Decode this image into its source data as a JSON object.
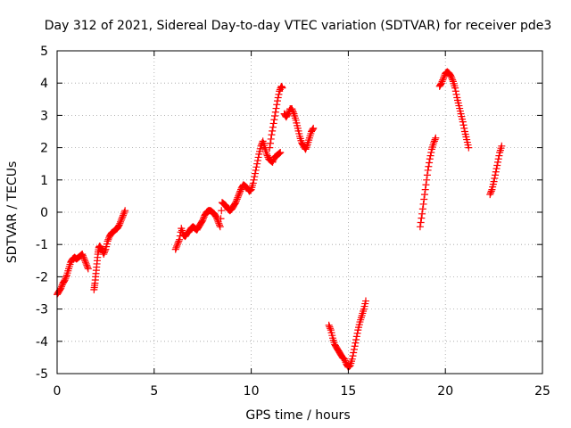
{
  "chart_data": {
    "type": "scatter",
    "title": "Day 312 of 2021, Sidereal Day-to-day VTEC variation (SDTVAR) for receiver pde3",
    "xlabel": "GPS time / hours",
    "ylabel": "SDTVAR / TECUs",
    "xlim": [
      0,
      25
    ],
    "ylim": [
      -5,
      5
    ],
    "xticks": [
      0,
      5,
      10,
      15,
      20,
      25
    ],
    "yticks": [
      -5,
      -4,
      -3,
      -2,
      -1,
      0,
      1,
      2,
      3,
      4,
      5
    ],
    "xtick_labels": [
      "0",
      "5",
      "10",
      "15",
      "20",
      "25"
    ],
    "ytick_labels": [
      "-5",
      "-4",
      "-3",
      "-2",
      "-1",
      "0",
      "1",
      "2",
      "3",
      "4",
      "5"
    ],
    "grid": true,
    "legend": "none",
    "marker": "+",
    "color": "#ff0000",
    "series": [
      {
        "name": "pde3",
        "segments": [
          [
            [
              0.0,
              -2.55
            ],
            [
              0.1,
              -2.45
            ],
            [
              0.2,
              -2.35
            ],
            [
              0.3,
              -2.2
            ],
            [
              0.4,
              -2.1
            ],
            [
              0.5,
              -1.95
            ],
            [
              0.6,
              -1.75
            ],
            [
              0.7,
              -1.55
            ],
            [
              0.8,
              -1.45
            ],
            [
              0.9,
              -1.4
            ],
            [
              1.0,
              -1.45
            ],
            [
              1.1,
              -1.4
            ],
            [
              1.2,
              -1.35
            ],
            [
              1.3,
              -1.3
            ],
            [
              1.4,
              -1.45
            ],
            [
              1.5,
              -1.6
            ],
            [
              1.6,
              -1.75
            ]
          ],
          [
            [
              1.9,
              -2.4
            ],
            [
              1.95,
              -2.2
            ],
            [
              2.0,
              -1.9
            ],
            [
              2.05,
              -1.6
            ],
            [
              2.1,
              -1.3
            ],
            [
              2.15,
              -1.1
            ],
            [
              2.2,
              -1.05
            ],
            [
              2.3,
              -1.15
            ],
            [
              2.4,
              -1.3
            ],
            [
              2.5,
              -1.15
            ],
            [
              2.6,
              -0.9
            ],
            [
              2.7,
              -0.75
            ],
            [
              2.8,
              -0.65
            ],
            [
              2.9,
              -0.6
            ],
            [
              3.0,
              -0.55
            ],
            [
              3.1,
              -0.5
            ],
            [
              3.2,
              -0.4
            ],
            [
              3.3,
              -0.25
            ],
            [
              3.4,
              -0.1
            ],
            [
              3.5,
              0.05
            ]
          ],
          [
            [
              6.1,
              -1.15
            ],
            [
              6.2,
              -1.0
            ],
            [
              6.3,
              -0.85
            ],
            [
              6.4,
              -0.5
            ],
            [
              6.5,
              -0.7
            ],
            [
              6.6,
              -0.75
            ],
            [
              6.7,
              -0.65
            ],
            [
              6.8,
              -0.6
            ],
            [
              6.9,
              -0.5
            ],
            [
              7.0,
              -0.45
            ],
            [
              7.1,
              -0.5
            ],
            [
              7.2,
              -0.55
            ],
            [
              7.3,
              -0.45
            ],
            [
              7.4,
              -0.35
            ],
            [
              7.5,
              -0.25
            ],
            [
              7.6,
              -0.1
            ],
            [
              7.7,
              0.0
            ],
            [
              7.8,
              0.05
            ],
            [
              7.9,
              0.05
            ],
            [
              8.0,
              0.0
            ],
            [
              8.1,
              -0.05
            ],
            [
              8.2,
              -0.15
            ],
            [
              8.3,
              -0.3
            ],
            [
              8.4,
              -0.45
            ],
            [
              8.5,
              0.3
            ],
            [
              8.6,
              0.25
            ],
            [
              8.7,
              0.2
            ],
            [
              8.8,
              0.1
            ],
            [
              8.9,
              0.05
            ],
            [
              9.0,
              0.1
            ],
            [
              9.1,
              0.2
            ],
            [
              9.2,
              0.3
            ],
            [
              9.3,
              0.45
            ],
            [
              9.4,
              0.6
            ],
            [
              9.5,
              0.75
            ],
            [
              9.6,
              0.85
            ],
            [
              9.7,
              0.8
            ],
            [
              9.8,
              0.75
            ],
            [
              9.9,
              0.65
            ],
            [
              10.0,
              0.7
            ],
            [
              10.1,
              0.9
            ],
            [
              10.2,
              1.2
            ],
            [
              10.3,
              1.5
            ],
            [
              10.4,
              1.8
            ],
            [
              10.5,
              2.05
            ],
            [
              10.6,
              2.2
            ],
            [
              10.7,
              2.0
            ],
            [
              10.8,
              1.8
            ],
            [
              10.9,
              1.65
            ],
            [
              11.0,
              1.6
            ],
            [
              11.1,
              1.55
            ],
            [
              11.2,
              1.7
            ],
            [
              11.3,
              1.75
            ],
            [
              11.4,
              1.8
            ],
            [
              11.5,
              1.85
            ]
          ],
          [
            [
              10.95,
              2.0
            ],
            [
              11.05,
              2.4
            ],
            [
              11.15,
              2.75
            ],
            [
              11.25,
              3.1
            ],
            [
              11.35,
              3.45
            ],
            [
              11.45,
              3.75
            ],
            [
              11.55,
              3.9
            ],
            [
              11.6,
              3.85
            ]
          ],
          [
            [
              11.7,
              3.05
            ],
            [
              11.8,
              2.95
            ],
            [
              11.9,
              3.05
            ],
            [
              12.0,
              3.2
            ],
            [
              12.1,
              3.2
            ],
            [
              12.2,
              3.05
            ],
            [
              12.3,
              2.85
            ],
            [
              12.4,
              2.6
            ],
            [
              12.5,
              2.35
            ],
            [
              12.6,
              2.15
            ],
            [
              12.7,
              2.05
            ],
            [
              12.8,
              1.95
            ],
            [
              12.9,
              2.1
            ],
            [
              13.0,
              2.3
            ],
            [
              13.1,
              2.5
            ],
            [
              13.2,
              2.6
            ]
          ],
          [
            [
              14.0,
              -3.5
            ],
            [
              14.1,
              -3.65
            ],
            [
              14.2,
              -3.9
            ],
            [
              14.3,
              -4.1
            ],
            [
              14.4,
              -4.2
            ],
            [
              14.5,
              -4.3
            ],
            [
              14.6,
              -4.4
            ],
            [
              14.7,
              -4.5
            ],
            [
              14.8,
              -4.55
            ],
            [
              14.9,
              -4.7
            ],
            [
              15.0,
              -4.8
            ],
            [
              15.1,
              -4.75
            ],
            [
              15.2,
              -4.55
            ],
            [
              15.3,
              -4.25
            ],
            [
              15.4,
              -3.95
            ],
            [
              15.5,
              -3.65
            ],
            [
              15.6,
              -3.4
            ],
            [
              15.7,
              -3.2
            ],
            [
              15.8,
              -3.0
            ],
            [
              15.9,
              -2.75
            ]
          ],
          [
            [
              18.7,
              -0.45
            ],
            [
              18.8,
              -0.05
            ],
            [
              18.9,
              0.4
            ],
            [
              19.0,
              0.85
            ],
            [
              19.1,
              1.3
            ],
            [
              19.2,
              1.65
            ],
            [
              19.3,
              1.95
            ],
            [
              19.4,
              2.15
            ],
            [
              19.5,
              2.3
            ]
          ],
          [
            [
              19.7,
              3.9
            ],
            [
              19.8,
              4.0
            ],
            [
              19.9,
              4.15
            ],
            [
              20.0,
              4.3
            ],
            [
              20.1,
              4.35
            ],
            [
              20.2,
              4.3
            ],
            [
              20.3,
              4.2
            ],
            [
              20.4,
              4.05
            ],
            [
              20.5,
              3.85
            ],
            [
              20.6,
              3.55
            ],
            [
              20.7,
              3.3
            ],
            [
              20.8,
              3.05
            ],
            [
              20.9,
              2.8
            ],
            [
              21.0,
              2.5
            ],
            [
              21.1,
              2.25
            ],
            [
              21.2,
              2.0
            ]
          ],
          [
            [
              22.3,
              0.55
            ],
            [
              22.4,
              0.7
            ],
            [
              22.5,
              0.95
            ],
            [
              22.6,
              1.25
            ],
            [
              22.7,
              1.55
            ],
            [
              22.8,
              1.85
            ],
            [
              22.9,
              2.05
            ]
          ]
        ]
      }
    ]
  }
}
